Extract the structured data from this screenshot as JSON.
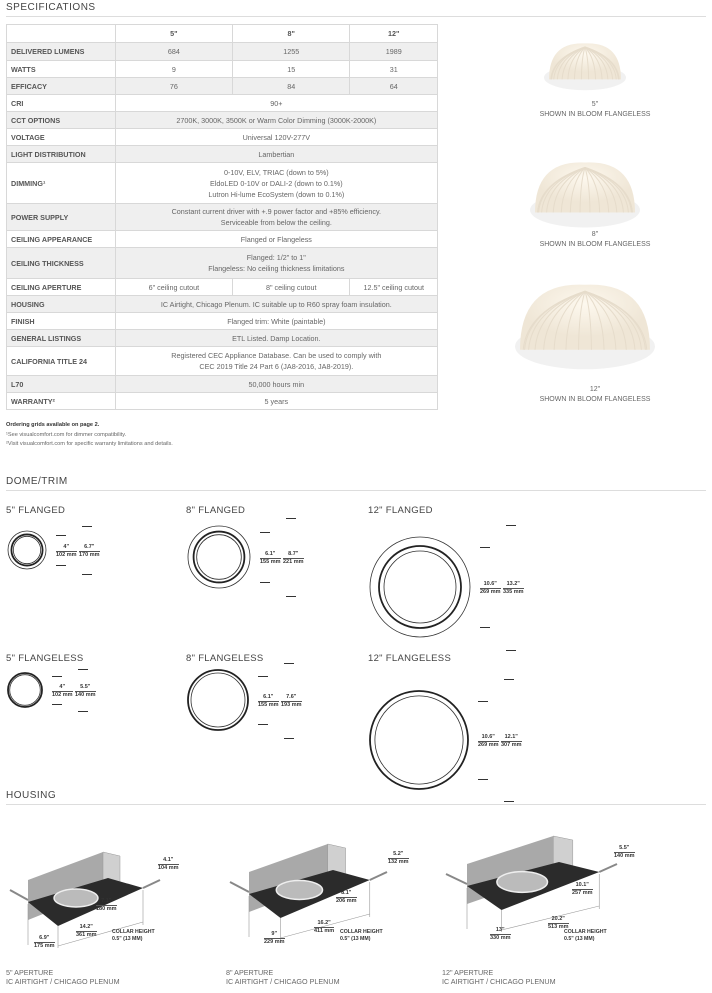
{
  "specifications": {
    "title": "SPECIFICATIONS",
    "columns": [
      "5\"",
      "8\"",
      "12\""
    ],
    "rows": [
      {
        "label": "DELIVERED LUMENS",
        "values": [
          "684",
          "1255",
          "1989"
        ]
      },
      {
        "label": "WATTS",
        "values": [
          "9",
          "15",
          "31"
        ]
      },
      {
        "label": "EFFICACY",
        "values": [
          "76",
          "84",
          "64"
        ]
      },
      {
        "label": "CRI",
        "value": "90+"
      },
      {
        "label": "CCT OPTIONS",
        "value": "2700K, 3000K, 3500K or Warm Color Dimming (3000K-2000K)"
      },
      {
        "label": "VOLTAGE",
        "value": "Universal 120V-277V"
      },
      {
        "label": "LIGHT DISTRIBUTION",
        "value": "Lambertian"
      },
      {
        "label": "DIMMING¹",
        "lines": [
          "0-10V, ELV, TRIAC (down to 5%)",
          "EldoLED 0-10V or DALI-2 (down to 0.1%)",
          "Lutron Hi-lume EcoSystem (down to 0.1%)"
        ]
      },
      {
        "label": "POWER SUPPLY",
        "lines": [
          "Constant current driver with +.9 power factor and +85% efficiency.",
          "Serviceable from below the ceiling."
        ]
      },
      {
        "label": "CEILING APPEARANCE",
        "value": "Flanged or Flangeless"
      },
      {
        "label": "CEILING THICKNESS",
        "lines": [
          "Flanged: 1/2\" to 1\"",
          "Flangeless: No ceiling thickness limitations"
        ]
      },
      {
        "label": "CEILING APERTURE",
        "values": [
          "6\" ceiling cutout",
          "8\" ceiling cutout",
          "12.5\" ceiling cutout"
        ]
      },
      {
        "label": "HOUSING",
        "value": "IC Airtight, Chicago Plenum. IC suitable up to R60 spray foam insulation."
      },
      {
        "label": "FINISH",
        "value": "Flanged trim: White (paintable)"
      },
      {
        "label": "GENERAL LISTINGS",
        "value": "ETL Listed. Damp Location."
      },
      {
        "label": "CALIFORNIA TITLE 24",
        "lines": [
          "Registered CEC Appliance Database. Can be used to comply with",
          "CEC 2019 Title 24 Part 6 (JA8-2016, JA8-2019)."
        ]
      },
      {
        "label": "L70",
        "value": "50,000 hours min"
      },
      {
        "label": "WARRANTY²",
        "value": "5 years"
      }
    ],
    "notes": [
      "Ordering grids available on page 2.",
      "¹See visualcomfort.com for dimmer compatibility.",
      "²Visit visualcomfort.com for specific warranty limitations and details."
    ]
  },
  "product_images": [
    {
      "size": "5\"",
      "caption": "SHOWN IN BLOOM FLANGELESS"
    },
    {
      "size": "8\"",
      "caption": "SHOWN IN BLOOM FLANGELESS"
    },
    {
      "size": "12\"",
      "caption": "SHOWN IN BLOOM FLANGELESS"
    }
  ],
  "dome_trim": {
    "title": "DOME/TRIM",
    "flanged": [
      {
        "title": "5\" FLANGED",
        "inner": [
          "4\"",
          "102 mm"
        ],
        "outer": [
          "6.7\"",
          "170 mm"
        ]
      },
      {
        "title": "8\" FLANGED",
        "inner": [
          "6.1\"",
          "155 mm"
        ],
        "outer": [
          "8.7\"",
          "221 mm"
        ]
      },
      {
        "title": "12\" FLANGED",
        "inner": [
          "10.6\"",
          "269 mm"
        ],
        "outer": [
          "13.2\"",
          "335 mm"
        ]
      }
    ],
    "flangeless": [
      {
        "title": "5\" FLANGELESS",
        "inner": [
          "4\"",
          "102 mm"
        ],
        "outer": [
          "5.5\"",
          "140 mm"
        ]
      },
      {
        "title": "8\" FLANGELESS",
        "inner": [
          "6.1\"",
          "155 mm"
        ],
        "outer": [
          "7.6\"",
          "193 mm"
        ]
      },
      {
        "title": "12\" FLANGELESS",
        "inner": [
          "10.6\"",
          "269 mm"
        ],
        "outer": [
          "12.1\"",
          "307 mm"
        ]
      }
    ]
  },
  "housing": {
    "title": "HOUSING",
    "collar": [
      "COLLAR HEIGHT",
      "0.5\" (13 MM)"
    ],
    "items": [
      {
        "height": [
          "4.1\"",
          "104 mm"
        ],
        "aperture": [
          "7.1\"",
          "180 mm"
        ],
        "length": [
          "14.2\"",
          "361 mm"
        ],
        "width": [
          "6.9\"",
          "175 mm"
        ],
        "caption": [
          "5\" APERTURE",
          "IC AIRTIGHT /  CHICAGO PLENUM"
        ]
      },
      {
        "height": [
          "5.2\"",
          "132 mm"
        ],
        "aperture": [
          "8.1\"",
          "206 mm"
        ],
        "length": [
          "16.2\"",
          "411 mm"
        ],
        "width": [
          "9\"",
          "229 mm"
        ],
        "caption": [
          "8\" APERTURE",
          "IC AIRTIGHT /  CHICAGO PLENUM"
        ]
      },
      {
        "height": [
          "5.5\"",
          "140 mm"
        ],
        "aperture": [
          "10.1\"",
          "257 mm"
        ],
        "length": [
          "20.2\"",
          "513 mm"
        ],
        "width": [
          "13\"",
          "330 mm"
        ],
        "caption": [
          "12\" APERTURE",
          "IC AIRTIGHT /  CHICAGO PLENUM"
        ]
      }
    ]
  }
}
